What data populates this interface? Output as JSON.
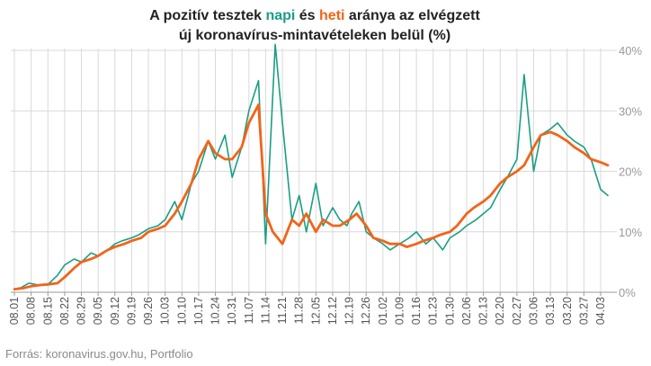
{
  "colors": {
    "napi": "#1a9e84",
    "heti": "#f26419",
    "text": "#222222",
    "grid": "#d9d9d9"
  },
  "title": {
    "line1_part1": "A pozitív tesztek ",
    "line1_napi": "napi",
    "line1_part2": " és ",
    "line1_heti": "heti",
    "line1_part3": " aránya az elvégzett",
    "line2": "új koronavírus-mintavételeken belül (%)"
  },
  "source": "Forrás: koronavirus.gov.hu, Portfolio",
  "chart_data": {
    "type": "line",
    "x_start_label": "08.01",
    "x_tick_labels": [
      "08.01",
      "08.08",
      "08.15",
      "08.22",
      "08.29",
      "09.05",
      "09.12",
      "09.19",
      "09.26",
      "10.03",
      "10.10",
      "10.17",
      "10.24",
      "10.31",
      "11.07",
      "11.14",
      "11.21",
      "11.28",
      "12.05",
      "12.12",
      "12.19",
      "12.26",
      "01.02",
      "01.09",
      "01.16",
      "01.23",
      "01.30",
      "02.06",
      "02.13",
      "02.20",
      "02.27",
      "03.06",
      "03.13",
      "03.20",
      "03.27",
      "04.03"
    ],
    "y_tick_labels": [
      "0%",
      "10%",
      "20%",
      "30%",
      "40%"
    ],
    "ylim": [
      0,
      40
    ],
    "y_ticks": [
      0,
      10,
      20,
      30,
      40
    ],
    "grid": true,
    "series": [
      {
        "name": "napi",
        "days": [
          0,
          3,
          6,
          10,
          14,
          18,
          21,
          25,
          28,
          32,
          35,
          39,
          42,
          45,
          49,
          52,
          56,
          60,
          63,
          67,
          70,
          74,
          77,
          81,
          84,
          88,
          91,
          95,
          98,
          102,
          105,
          109,
          112,
          116,
          119,
          122,
          126,
          129,
          133,
          136,
          139,
          141,
          144,
          147,
          150,
          154,
          157,
          161,
          165,
          168,
          172,
          175,
          179,
          182,
          186,
          189,
          193,
          196,
          199,
          203,
          206,
          210,
          213,
          217,
          220,
          224,
          227,
          231,
          234,
          238,
          241,
          245,
          248
        ],
        "values": [
          0.5,
          0.8,
          1.5,
          1.2,
          1.3,
          2.8,
          4.5,
          5.5,
          5,
          6.5,
          6,
          7,
          8,
          8.5,
          9,
          9.5,
          10.5,
          11,
          12,
          15,
          12,
          18,
          20,
          25,
          22,
          26,
          19,
          24,
          30,
          35,
          8,
          42,
          28,
          12,
          16,
          10,
          18,
          11,
          14,
          12,
          11,
          13,
          15,
          10,
          9,
          8,
          7,
          8,
          9,
          10,
          8,
          9,
          7,
          9,
          10,
          11,
          12,
          13,
          14,
          17,
          19,
          22,
          36,
          20,
          26,
          27,
          28,
          26,
          25,
          24,
          22,
          17,
          16
        ]
      },
      {
        "name": "heti",
        "days": [
          0,
          4,
          7,
          11,
          14,
          18,
          21,
          25,
          28,
          32,
          35,
          39,
          42,
          46,
          49,
          53,
          56,
          60,
          63,
          67,
          70,
          74,
          77,
          81,
          84,
          88,
          91,
          95,
          98,
          102,
          105,
          108,
          112,
          116,
          119,
          122,
          126,
          129,
          133,
          136,
          140,
          143,
          147,
          150,
          154,
          157,
          161,
          164,
          168,
          171,
          175,
          178,
          182,
          185,
          189,
          192,
          196,
          199,
          203,
          206,
          210,
          213,
          217,
          220,
          224,
          227,
          231,
          234,
          238,
          241,
          245,
          248
        ],
        "values": [
          0.5,
          0.7,
          1,
          1.2,
          1.3,
          1.5,
          2.5,
          4,
          5,
          5.5,
          6,
          7,
          7.5,
          8,
          8.5,
          9,
          10,
          10.5,
          11,
          13,
          15,
          18,
          22,
          25,
          23,
          22,
          22,
          24,
          28,
          31,
          13,
          10,
          8,
          12,
          11,
          13,
          10,
          12,
          11,
          11,
          12,
          13,
          11,
          9,
          8.5,
          8,
          8,
          7.5,
          8,
          8.5,
          9,
          9.5,
          10,
          11,
          13,
          14,
          15,
          16,
          18,
          19,
          20,
          21,
          24,
          26,
          26.5,
          26,
          25,
          24,
          23,
          22,
          21.5,
          21
        ]
      }
    ]
  }
}
